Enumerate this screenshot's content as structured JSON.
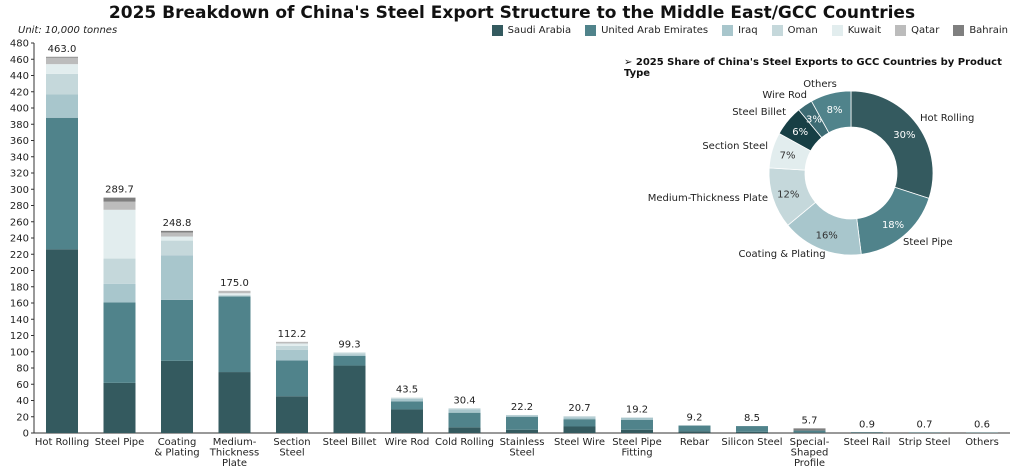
{
  "chart_data": [
    {
      "type": "bar",
      "stacked": true,
      "title": "2025 Breakdown of China's Steel Export Structure to the Middle East/GCC Countries",
      "unit": "Unit: 10,000 tonnes",
      "ylim": [
        0,
        480
      ],
      "ytick_step": 20,
      "grid": false,
      "legend_position": "top-right",
      "categories": [
        "Hot Rolling",
        "Steel Pipe",
        "Coating & Plating",
        "Medium-Thickness Plate",
        "Section Steel",
        "Steel Billet",
        "Wire Rod",
        "Cold Rolling",
        "Stainless Steel",
        "Steel Wire",
        "Steel Pipe Fitting",
        "Rebar",
        "Silicon Steel",
        "Special-Shaped Profile",
        "Steel Rail",
        "Strip Steel",
        "Others"
      ],
      "category_lines": [
        [
          "Hot Rolling"
        ],
        [
          "Steel Pipe"
        ],
        [
          "Coating",
          "& Plating"
        ],
        [
          "Medium-",
          "Thickness",
          "Plate"
        ],
        [
          "Section",
          "Steel"
        ],
        [
          "Steel Billet"
        ],
        [
          "Wire Rod"
        ],
        [
          "Cold Rolling"
        ],
        [
          "Stainless",
          "Steel"
        ],
        [
          "Steel Wire"
        ],
        [
          "Steel Pipe",
          "Fitting"
        ],
        [
          "Rebar"
        ],
        [
          "Silicon Steel"
        ],
        [
          "Special-",
          "Shaped",
          "Profile"
        ],
        [
          "Steel Rail"
        ],
        [
          "Strip Steel"
        ],
        [
          "Others"
        ]
      ],
      "totals": [
        "463.0",
        "289.7",
        "248.8",
        "175.0",
        "112.2",
        "99.3",
        "43.5",
        "30.4",
        "22.2",
        "20.7",
        "19.2",
        "9.2",
        "8.5",
        "5.7",
        "0.9",
        "0.7",
        "0.6"
      ],
      "series": [
        {
          "name": "Saudi Arabia",
          "color": "#345a5f",
          "values": [
            226,
            61.7,
            88.8,
            75,
            45.2,
            83,
            29,
            7,
            4,
            8,
            4,
            2,
            1.5,
            1,
            0.9,
            0.7,
            0.6
          ]
        },
        {
          "name": "United Arab Emirates",
          "color": "#50838b",
          "values": [
            162,
            99,
            75,
            93,
            44,
            12,
            10,
            18,
            16,
            9,
            12,
            7.2,
            7,
            2,
            0,
            0,
            0
          ]
        },
        {
          "name": "Iraq",
          "color": "#a8c6cc",
          "values": [
            29,
            23,
            55,
            0,
            13,
            2,
            3,
            4,
            1.5,
            2.5,
            2.5,
            0,
            0,
            0,
            0,
            0,
            0
          ]
        },
        {
          "name": "Oman",
          "color": "#c5d8db",
          "values": [
            25,
            31,
            18,
            2,
            5,
            2,
            1.5,
            1.4,
            0.7,
            1.2,
            0.7,
            0,
            0,
            0,
            0,
            0,
            0
          ]
        },
        {
          "name": "Kuwait",
          "color": "#e2edee",
          "values": [
            12,
            60,
            5,
            2,
            3,
            0.3,
            0,
            0,
            0,
            0,
            0,
            0,
            0,
            0,
            0,
            0,
            0
          ]
        },
        {
          "name": "Qatar",
          "color": "#bcbcbc",
          "values": [
            8,
            10,
            5,
            3,
            2,
            0,
            0,
            0,
            0,
            0,
            0,
            0,
            0,
            0,
            0,
            0,
            0
          ]
        },
        {
          "name": "Bahrain",
          "color": "#7f7f7f",
          "values": [
            1,
            5,
            2,
            0,
            0,
            0,
            0,
            0,
            0,
            0,
            0,
            0,
            0,
            2.7,
            0,
            0,
            0
          ]
        }
      ]
    },
    {
      "type": "pie",
      "donut": true,
      "title": "➢ 2025 Share of China's Steel Exports to GCC Countries by Product Type",
      "slices": [
        {
          "label": "Hot Rolling",
          "value": 30,
          "text": "30%",
          "color": "#345a5f"
        },
        {
          "label": "Steel Pipe",
          "value": 18,
          "text": "18%",
          "color": "#50838b"
        },
        {
          "label": "Coating & Plating",
          "value": 16,
          "text": "16%",
          "color": "#a8c6cc"
        },
        {
          "label": "Medium-Thickness Plate",
          "value": 12,
          "text": "12%",
          "color": "#c5d8db"
        },
        {
          "label": "Section Steel",
          "value": 7,
          "text": "7%",
          "color": "#e2edee"
        },
        {
          "label": "Steel Billet",
          "value": 6,
          "text": "6%",
          "color": "#173f45"
        },
        {
          "label": "Wire Rod",
          "value": 3,
          "text": "3%",
          "color": "#3d6b73"
        },
        {
          "label": "Others",
          "value": 8,
          "text": "8%",
          "color": "#50838b"
        }
      ]
    }
  ]
}
